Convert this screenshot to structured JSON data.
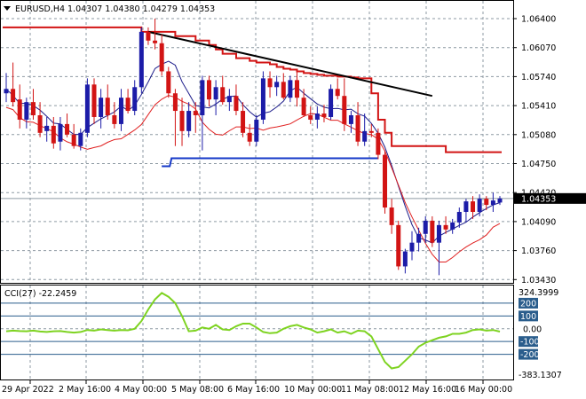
{
  "header": {
    "symbol": "EURUSD,H4",
    "ohlc": "1.04307 1.04380 1.04279 1.04353"
  },
  "cci_panel": {
    "label": "CCI(27) -22.2459",
    "upper_value": "324.3999",
    "lower_value": "-383.1307"
  },
  "colors": {
    "bull": "#1c1ca8",
    "bear": "#d21414",
    "grid": "#8e9aa3",
    "envelope_upper": "#d21414",
    "envelope_lower": "#1538c8",
    "mid_line": "#1c1c8a",
    "low_line": "#e02020",
    "trendline": "#000000",
    "cci": "#7ed321",
    "level_box": "#2a5d8c"
  },
  "chart_data": [
    {
      "type": "candlestick",
      "title": "EURUSD,H4",
      "ylim": [
        1.0343,
        1.065
      ],
      "y_ticks": [
        "1.06400",
        "1.06070",
        "1.05740",
        "1.05410",
        "1.05080",
        "1.04750",
        "1.04420",
        "1.04090",
        "1.03760",
        "1.03430"
      ],
      "x_labels": [
        "29 Apr 2022",
        "2 May 16:00",
        "4 May 00:00",
        "5 May 08:00",
        "6 May 16:00",
        "10 May 00:00",
        "11 May 08:00",
        "12 May 16:00",
        "16 May 00:00"
      ],
      "current_price": "1.04353",
      "current_price_value": 1.04353,
      "candles": [
        [
          1.0555,
          1.0578,
          1.0545,
          1.056
        ],
        [
          1.056,
          1.059,
          1.054,
          1.0545
        ],
        [
          1.0548,
          1.0565,
          1.0515,
          1.0525
        ],
        [
          1.0525,
          1.055,
          1.0515,
          1.0545
        ],
        [
          1.0545,
          1.056,
          1.0525,
          1.053
        ],
        [
          1.053,
          1.0545,
          1.0505,
          1.051
        ],
        [
          1.0512,
          1.0528,
          1.05,
          1.0518
        ],
        [
          1.0518,
          1.0528,
          1.0492,
          1.0498
        ],
        [
          1.05,
          1.0528,
          1.049,
          1.052
        ],
        [
          1.052,
          1.0532,
          1.0505,
          1.0508
        ],
        [
          1.0508,
          1.052,
          1.0492,
          1.0495
        ],
        [
          1.0495,
          1.0515,
          1.049,
          1.051
        ],
        [
          1.051,
          1.0572,
          1.0505,
          1.0565
        ],
        [
          1.0565,
          1.0572,
          1.052,
          1.0528
        ],
        [
          1.0528,
          1.056,
          1.0515,
          1.055
        ],
        [
          1.055,
          1.0565,
          1.0525,
          1.053
        ],
        [
          1.053,
          1.0545,
          1.0515,
          1.052
        ],
        [
          1.052,
          1.056,
          1.0512,
          1.055
        ],
        [
          1.055,
          1.056,
          1.0532,
          1.0535
        ],
        [
          1.0535,
          1.057,
          1.053,
          1.0562
        ],
        [
          1.0562,
          1.063,
          1.0555,
          1.0625
        ],
        [
          1.0625,
          1.063,
          1.061,
          1.0615
        ],
        [
          1.0615,
          1.064,
          1.0605,
          1.0612
        ],
        [
          1.0612,
          1.0622,
          1.0575,
          1.058
        ],
        [
          1.058,
          1.0585,
          1.055,
          1.0555
        ],
        [
          1.0555,
          1.056,
          1.0495,
          1.0535
        ],
        [
          1.0535,
          1.055,
          1.0495,
          1.0512
        ],
        [
          1.0512,
          1.0545,
          1.0505,
          1.0535
        ],
        [
          1.0535,
          1.0545,
          1.051,
          1.053
        ],
        [
          1.053,
          1.0575,
          1.049,
          1.057
        ],
        [
          1.057,
          1.0575,
          1.054,
          1.0548
        ],
        [
          1.0548,
          1.057,
          1.053,
          1.0562
        ],
        [
          1.0562,
          1.0575,
          1.0542,
          1.0545
        ],
        [
          1.0545,
          1.056,
          1.0535,
          1.0552
        ],
        [
          1.0552,
          1.0565,
          1.053,
          1.0535
        ],
        [
          1.0535,
          1.0545,
          1.0505,
          1.051
        ],
        [
          1.051,
          1.052,
          1.0495,
          1.05
        ],
        [
          1.05,
          1.053,
          1.0495,
          1.0525
        ],
        [
          1.0525,
          1.058,
          1.052,
          1.0572
        ],
        [
          1.0572,
          1.058,
          1.055,
          1.0562
        ],
        [
          1.0562,
          1.0575,
          1.0552,
          1.0568
        ],
        [
          1.0568,
          1.0578,
          1.0548,
          1.055
        ],
        [
          1.055,
          1.0575,
          1.0545,
          1.057
        ],
        [
          1.057,
          1.058,
          1.054,
          1.055
        ],
        [
          1.055,
          1.056,
          1.0528,
          1.053
        ],
        [
          1.053,
          1.054,
          1.052,
          1.0525
        ],
        [
          1.0525,
          1.054,
          1.0515,
          1.0532
        ],
        [
          1.0532,
          1.0542,
          1.0522,
          1.0528
        ],
        [
          1.0528,
          1.0565,
          1.0525,
          1.056
        ],
        [
          1.056,
          1.0572,
          1.0548,
          1.0552
        ],
        [
          1.0552,
          1.0572,
          1.0512,
          1.052
        ],
        [
          1.052,
          1.0535,
          1.051,
          1.053
        ],
        [
          1.053,
          1.0545,
          1.0495,
          1.05
        ],
        [
          1.05,
          1.0532,
          1.0495,
          1.0512
        ],
        [
          1.0512,
          1.052,
          1.0505,
          1.051
        ],
        [
          1.051,
          1.0515,
          1.048,
          1.0485
        ],
        [
          1.0485,
          1.049,
          1.0418,
          1.0425
        ],
        [
          1.0425,
          1.0435,
          1.0395,
          1.0405
        ],
        [
          1.0405,
          1.041,
          1.0354,
          1.0358
        ],
        [
          1.0358,
          1.0378,
          1.035,
          1.0375
        ],
        [
          1.0375,
          1.0398,
          1.0365,
          1.0385
        ],
        [
          1.0385,
          1.0402,
          1.0375,
          1.0395
        ],
        [
          1.0395,
          1.0415,
          1.0385,
          1.041
        ],
        [
          1.041,
          1.0415,
          1.038,
          1.0385
        ],
        [
          1.0385,
          1.041,
          1.0348,
          1.0405
        ],
        [
          1.0405,
          1.0415,
          1.0395,
          1.04
        ],
        [
          1.04,
          1.0412,
          1.0395,
          1.0408
        ],
        [
          1.0408,
          1.0425,
          1.0402,
          1.042
        ],
        [
          1.042,
          1.0435,
          1.0408,
          1.0432
        ],
        [
          1.0432,
          1.0438,
          1.0412,
          1.042
        ],
        [
          1.042,
          1.044,
          1.0415,
          1.0435
        ],
        [
          1.0435,
          1.0438,
          1.0422,
          1.0428
        ],
        [
          1.0428,
          1.0442,
          1.042,
          1.0433
        ],
        [
          1.04307,
          1.0438,
          1.04279,
          1.04353
        ]
      ],
      "upper_envelope": [
        1.063,
        1.063,
        1.063,
        1.063,
        1.063,
        1.063,
        1.063,
        1.063,
        1.063,
        1.063,
        1.063,
        1.063,
        1.063,
        1.063,
        1.063,
        1.063,
        1.063,
        1.063,
        1.063,
        1.063,
        1.0625,
        1.0625,
        1.0625,
        1.0625,
        1.0625,
        1.062,
        1.062,
        1.062,
        1.0615,
        1.0615,
        1.061,
        1.0605,
        1.06,
        1.06,
        1.0595,
        1.0595,
        1.0592,
        1.059,
        1.059,
        1.0588,
        1.0585,
        1.0583,
        1.0582,
        1.058,
        1.0578,
        1.0577,
        1.0576,
        1.0575,
        1.0575,
        1.0574,
        1.0574,
        1.0573,
        1.0572,
        1.0572,
        1.0555,
        1.0525,
        1.051,
        1.0495,
        1.0495,
        1.0495,
        1.0495,
        1.0495,
        1.0495,
        1.0495,
        1.0495,
        1.0488,
        1.0488,
        1.0488,
        1.0488,
        1.0488,
        1.0488,
        1.0488,
        1.0488,
        1.0488
      ],
      "lower_envelope_start": 23,
      "lower_envelope_end": 55,
      "lower_envelope_value": 1.0481,
      "cci": {
        "ylim": [
          -383.1307,
          324.3999
        ],
        "levels": [
          200,
          100,
          0,
          -100,
          -200
        ],
        "level_labels": [
          "200",
          "100",
          "0.00",
          "-100",
          "-200"
        ],
        "values": [
          -20,
          -15,
          -18,
          -20,
          -15,
          -22,
          -25,
          -20,
          -18,
          -25,
          -30,
          -25,
          -10,
          -15,
          -5,
          -10,
          -15,
          -10,
          -12,
          0,
          60,
          150,
          230,
          280,
          250,
          200,
          100,
          -20,
          -15,
          10,
          0,
          30,
          -5,
          -10,
          20,
          40,
          40,
          10,
          -25,
          -35,
          -30,
          0,
          20,
          30,
          10,
          -5,
          -30,
          -20,
          -5,
          -30,
          -20,
          -40,
          -15,
          -20,
          -60,
          -160,
          -260,
          -310,
          -300,
          -250,
          -200,
          -140,
          -110,
          -90,
          -70,
          -60,
          -40,
          -40,
          -30,
          -10,
          -5,
          -15,
          -10,
          -22.2459
        ]
      }
    }
  ]
}
